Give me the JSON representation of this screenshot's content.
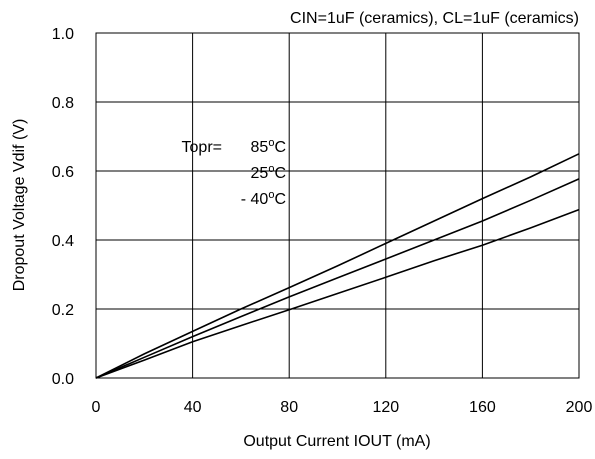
{
  "chart_data": {
    "type": "line",
    "title": "CIN=1uF (ceramics), CL=1uF (ceramics)",
    "xlabel": "Output Current IOUT (mA)",
    "ylabel": "Dropout Voltage Vdif (V)",
    "xlim": [
      0,
      200
    ],
    "ylim": [
      0,
      1.0
    ],
    "x_ticks": [
      0,
      40,
      80,
      120,
      160,
      200
    ],
    "x_tick_labels": [
      "0",
      "40",
      "80",
      "120",
      "160",
      "200"
    ],
    "y_ticks": [
      0,
      0.2,
      0.4,
      0.6,
      0.8,
      1.0
    ],
    "y_tick_labels": [
      "0.0",
      "0.2",
      "0.4",
      "0.6",
      "0.8",
      "1.0"
    ],
    "grid": true,
    "annotation": {
      "label": "Topr=",
      "entries": [
        "85oC",
        "25oC",
        "- 40oC"
      ]
    },
    "line_color": "#000000",
    "series": [
      {
        "x": [
          0,
          20,
          40,
          60,
          80,
          100,
          120,
          140,
          160,
          180,
          200
        ],
        "y": [
          0,
          0.07,
          0.135,
          0.2,
          0.262,
          0.325,
          0.39,
          0.455,
          0.52,
          0.583,
          0.65
        ]
      },
      {
        "x": [
          0,
          20,
          40,
          60,
          80,
          100,
          120,
          140,
          160,
          180,
          200
        ],
        "y": [
          0,
          0.06,
          0.12,
          0.178,
          0.235,
          0.29,
          0.345,
          0.4,
          0.455,
          0.515,
          0.577
        ]
      },
      {
        "x": [
          0,
          20,
          40,
          60,
          80,
          100,
          120,
          140,
          160,
          180,
          200
        ],
        "y": [
          0,
          0.052,
          0.105,
          0.152,
          0.198,
          0.245,
          0.292,
          0.34,
          0.385,
          0.435,
          0.488
        ]
      }
    ]
  }
}
